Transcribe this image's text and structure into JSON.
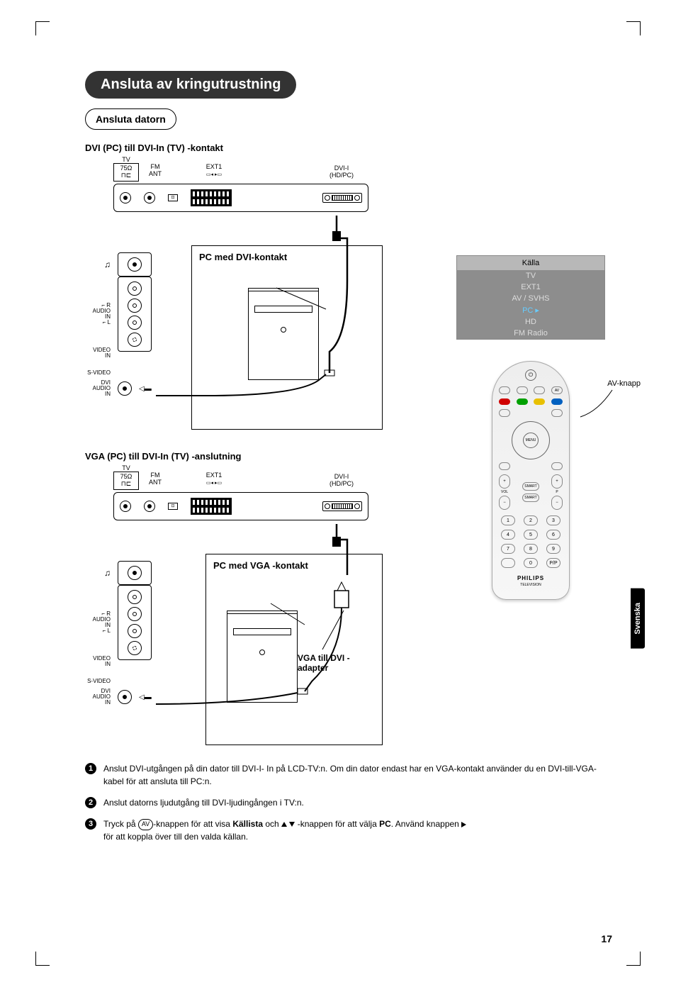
{
  "page_title": "Ansluta av kringutrustning",
  "subtitle": "Ansluta datorn",
  "section1_label": "DVI (PC) till DVI-In (TV) -kontakt",
  "section2_label": "VGA (PC) till DVI-In (TV) -anslutning",
  "pc_label_dvi": "PC  med DVI-kontakt",
  "pc_label_vga": "PC  med VGA -kontakt",
  "adapter_label": "VGA till DVI -adapter",
  "tv_ports": {
    "tv": "TV",
    "ohm": "75Ω",
    "fm": "FM",
    "ant": "ANT",
    "ext1": "EXT1",
    "dvi": "DVI-I",
    "hdpc": "(HD/PC)"
  },
  "side_labels": {
    "audio_r": "R",
    "audio": "AUDIO",
    "in": "IN",
    "audio_l": "L",
    "video": "VIDEO",
    "svideo": "S-VIDEO",
    "dvi_audio": "DVI AUDIO"
  },
  "source_menu": {
    "title": "Källa",
    "items": [
      "TV",
      "EXT1",
      "AV / SVHS",
      "PC",
      "HD",
      "FM Radio"
    ],
    "selected_index": 3,
    "title_bg": "#b8b8b8",
    "body_bg": "#8d8d8d",
    "text_color": "#dddddd",
    "selected_color": "#66ccff"
  },
  "av_label": "AV-knapp",
  "remote": {
    "brand": "PHILIPS",
    "subbrand": "TELEVISION",
    "top_row": [
      "",
      "",
      "",
      "AV"
    ],
    "color_row": [
      "#d00000",
      "#00a000",
      "#e8c000",
      "#0060c0"
    ],
    "menu": "MENU",
    "smart1": "SMART",
    "smart2": "SMART",
    "vol": "VOL",
    "prog": "P",
    "numbers": [
      "1",
      "2",
      "3",
      "4",
      "5",
      "6",
      "7",
      "8",
      "9",
      "",
      "0",
      "P/P"
    ]
  },
  "steps": [
    {
      "n": "1",
      "pre": "Anslut DVI-utgången på din dator till DVI-I- In på LCD-TV:n. Om din dator endast har en VGA-kontakt använder du en DVI-till-VGA-kabel för att ansluta till PC:n."
    },
    {
      "n": "2",
      "pre": "Anslut datorns ljudutgång till DVI-ljudingången i TV:n."
    },
    {
      "n": "3",
      "pre": "Tryck på ",
      "av": "AV",
      "mid": "-knappen för att visa ",
      "kw": "Källista",
      "mid2": " och ",
      "mid3": " -knappen för att välja ",
      "kw2": "PC",
      "mid4": ". Använd knappen ",
      "end": " för att koppla över till den valda källan."
    }
  ],
  "lang_tab": "Svenska",
  "page_number": "17",
  "colors": {
    "pill_bg": "#333333",
    "text": "#000000"
  }
}
